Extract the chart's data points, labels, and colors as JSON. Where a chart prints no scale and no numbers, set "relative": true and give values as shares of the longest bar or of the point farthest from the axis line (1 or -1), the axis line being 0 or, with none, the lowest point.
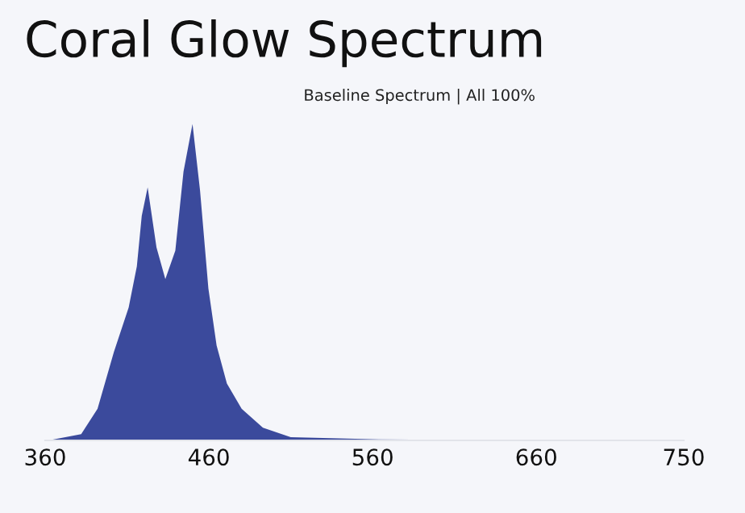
{
  "chart_data": {
    "type": "area",
    "title": "Coral Glow Spectrum",
    "subtitle": "Baseline Spectrum | All 100%",
    "relative": true,
    "x": [
      362,
      382,
      392,
      402,
      411,
      416,
      419,
      422.6,
      428,
      433.4,
      439.5,
      444.5,
      450,
      454.6,
      459.7,
      464.7,
      471,
      480,
      493,
      510,
      564,
      650,
      750
    ],
    "series": [
      {
        "color": "#3b4a9c",
        "values": [
          0,
          0.02,
          0.1,
          0.28,
          0.42,
          0.55,
          0.71,
          0.8,
          0.61,
          0.51,
          0.6,
          0.85,
          1,
          0.79,
          0.48,
          0.3,
          0.18,
          0.1,
          0.04,
          0.01,
          0.003,
          0.002,
          0.002
        ]
      }
    ],
    "xlim": [
      360,
      750
    ],
    "xticks": [
      360,
      460,
      560,
      660,
      750
    ],
    "grid": false
  }
}
